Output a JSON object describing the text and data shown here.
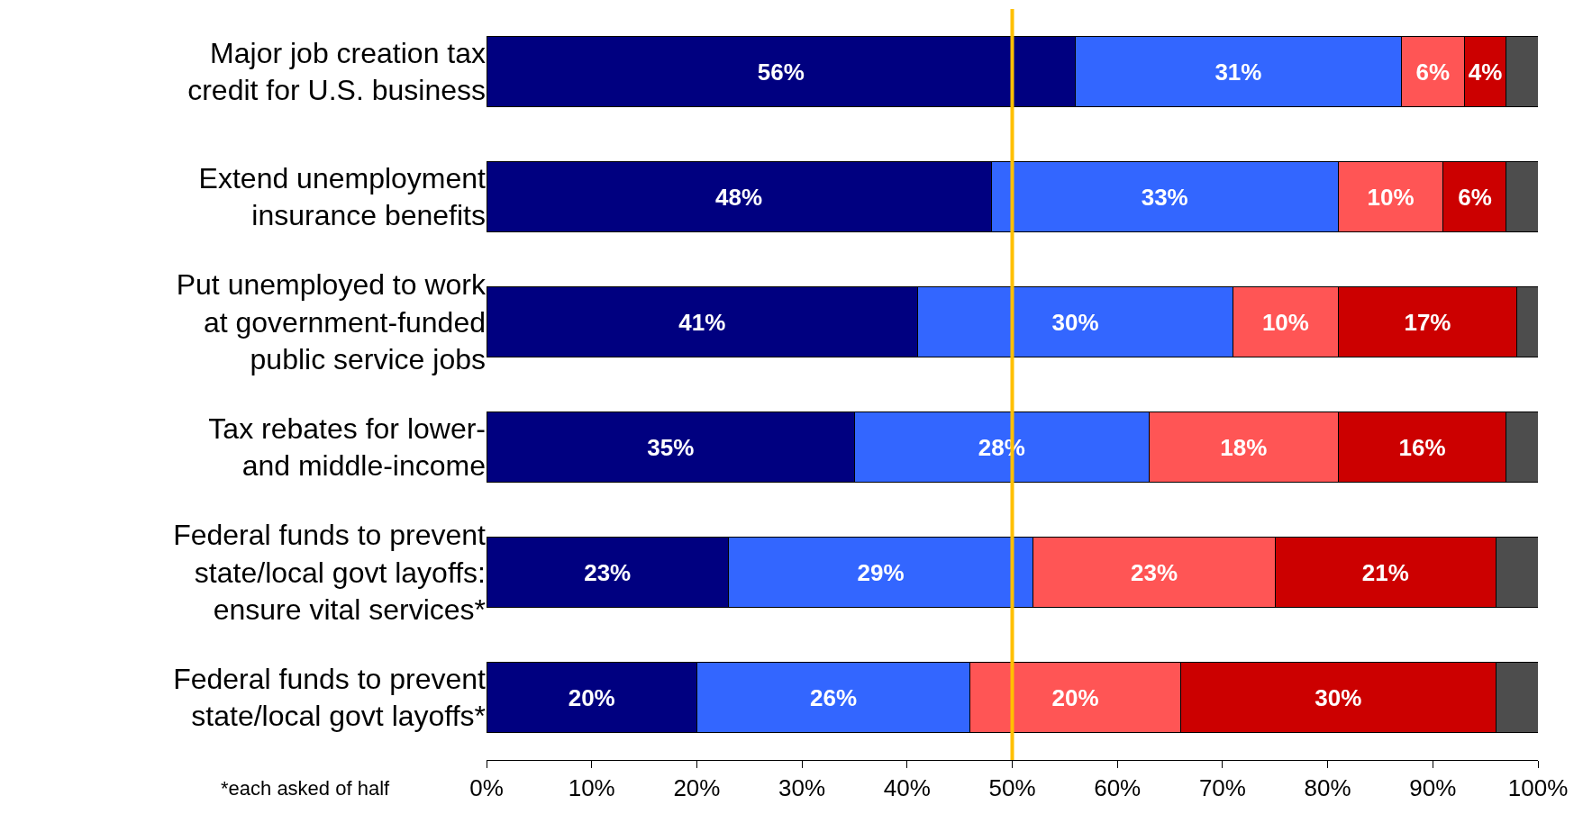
{
  "chart_data": {
    "type": "bar",
    "orientation": "horizontal",
    "stacked": true,
    "categories": [
      "Major job creation tax\ncredit for U.S. business",
      "Extend unemployment\ninsurance benefits",
      "Put unemployed to work\nat government-funded\npublic service jobs",
      "Tax rebates for lower-\nand middle-income",
      "Federal funds to prevent\nstate/local govt layoffs:\nensure vital services*",
      "Federal funds to prevent\nstate/local govt layoffs*"
    ],
    "series": [
      {
        "color": "#000080",
        "values": [
          56,
          48,
          41,
          35,
          23,
          20
        ],
        "value_labels": [
          "56%",
          "48%",
          "41%",
          "35%",
          "23%",
          "20%"
        ]
      },
      {
        "color": "#3366ff",
        "values": [
          31,
          33,
          30,
          28,
          29,
          26
        ],
        "value_labels": [
          "31%",
          "33%",
          "30%",
          "28%",
          "29%",
          "26%"
        ]
      },
      {
        "color": "#ff5555",
        "values": [
          6,
          10,
          10,
          18,
          23,
          20
        ],
        "value_labels": [
          "6%",
          "10%",
          "10%",
          "18%",
          "23%",
          "20%"
        ]
      },
      {
        "color": "#cc0000",
        "values": [
          4,
          6,
          17,
          16,
          21,
          30
        ],
        "value_labels": [
          "4%",
          "6%",
          "17%",
          "16%",
          "21%",
          "30%"
        ]
      },
      {
        "color": "#4d4d4d",
        "values": [
          3,
          3,
          2,
          3,
          4,
          4
        ],
        "value_labels": [
          null,
          null,
          null,
          null,
          null,
          null
        ]
      }
    ],
    "xlim": [
      0,
      100
    ],
    "xticks": [
      {
        "value": 0,
        "label": "0%"
      },
      {
        "value": 10,
        "label": "10%"
      },
      {
        "value": 20,
        "label": "20%"
      },
      {
        "value": 30,
        "label": "30%"
      },
      {
        "value": 40,
        "label": "40%"
      },
      {
        "value": 50,
        "label": "50%"
      },
      {
        "value": 60,
        "label": "60%"
      },
      {
        "value": 70,
        "label": "70%"
      },
      {
        "value": 80,
        "label": "80%"
      },
      {
        "value": 90,
        "label": "90%"
      },
      {
        "value": 100,
        "label": "100%"
      }
    ],
    "ref_lines": [
      {
        "axis": "x",
        "value": 50,
        "color": "#ffc000"
      }
    ],
    "annotations": [
      "*each asked of half"
    ]
  }
}
